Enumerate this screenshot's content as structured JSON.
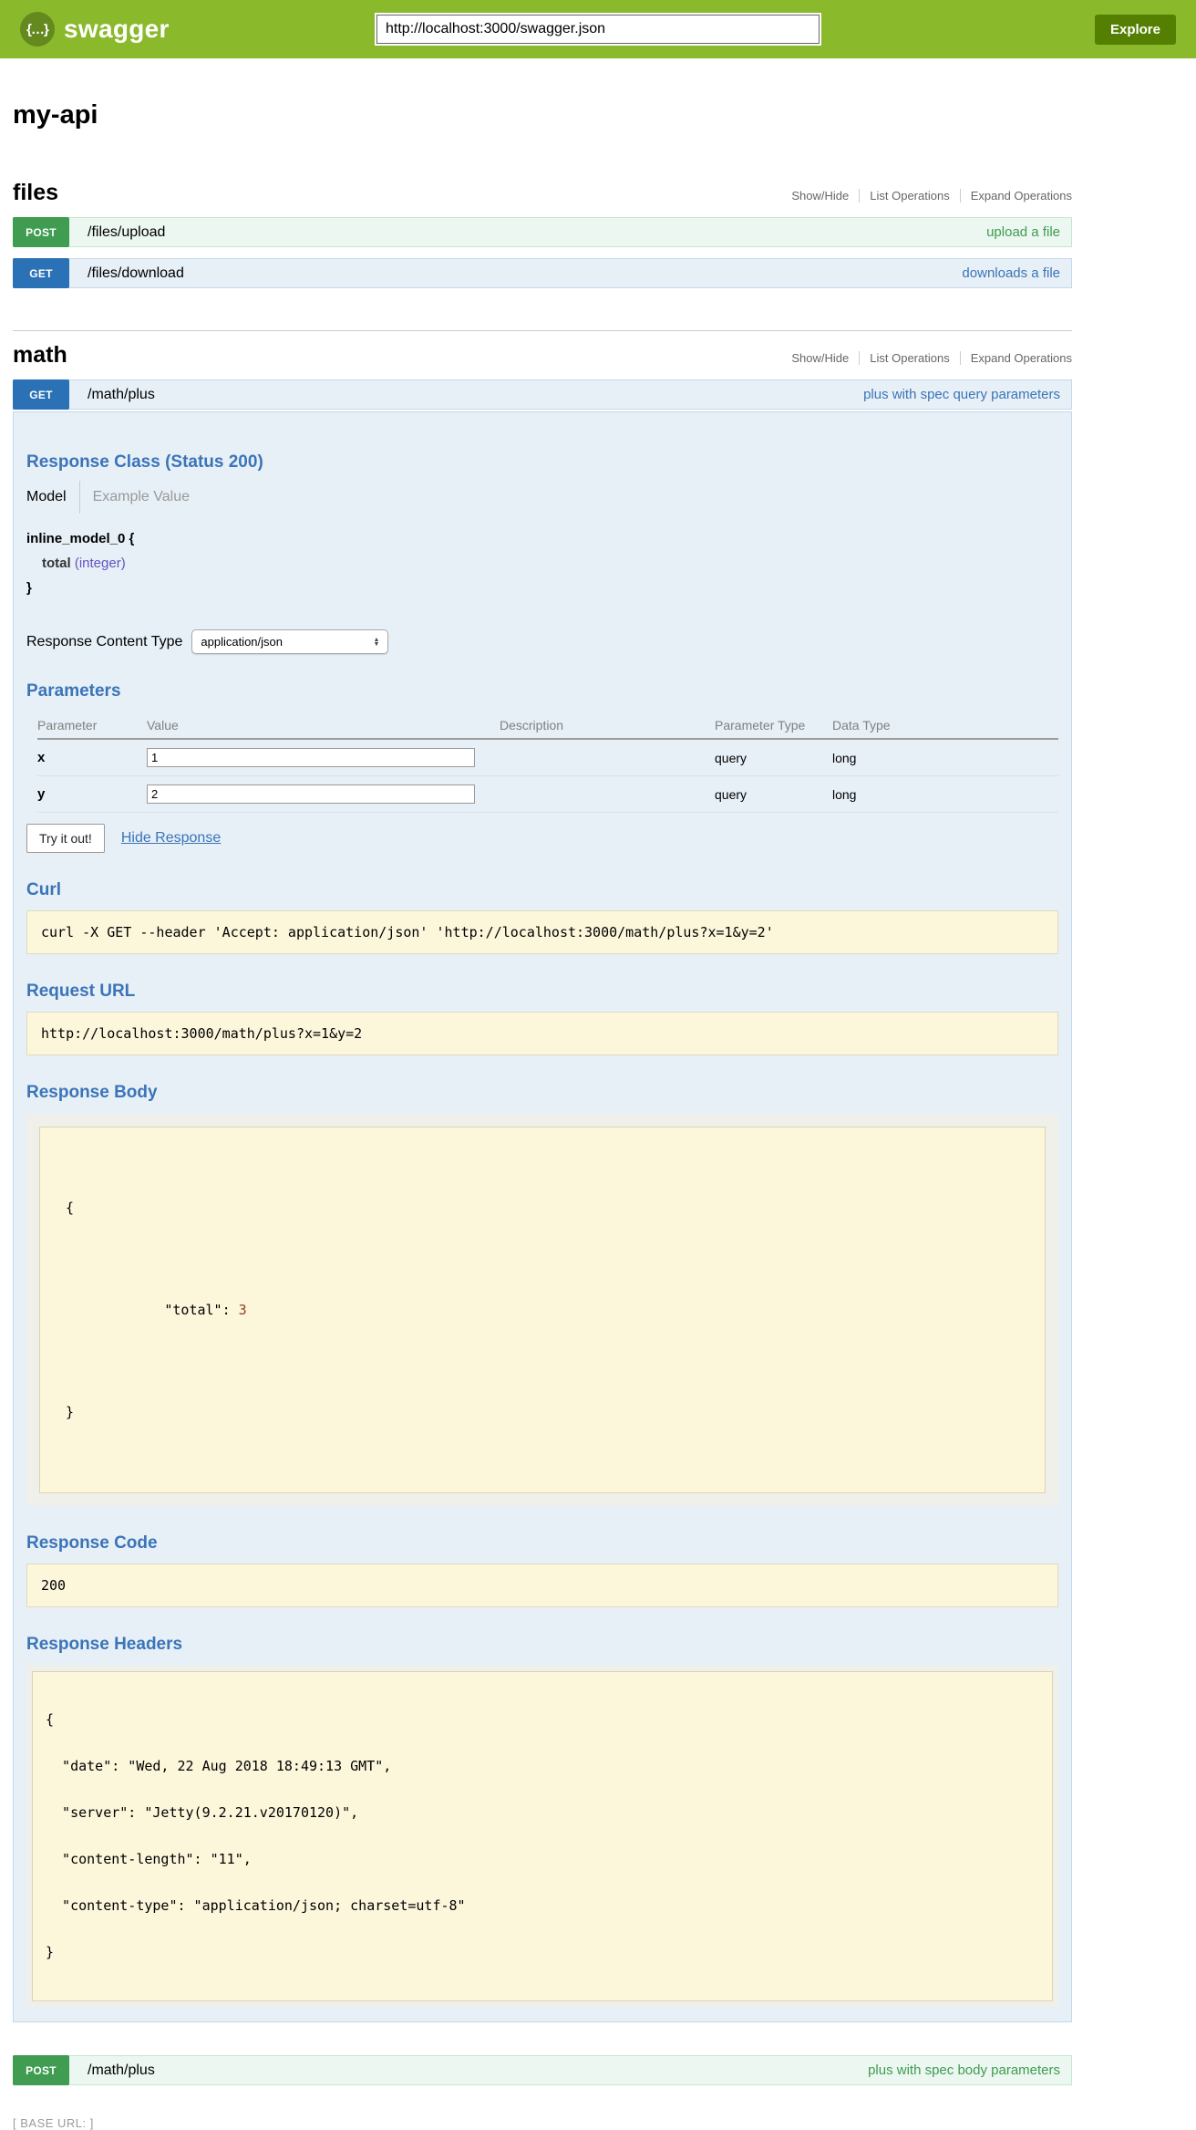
{
  "colors": {
    "header_green": "#8bb92c",
    "explore_button_green": "#547f00",
    "get_badge_blue": "#2a72b5",
    "get_row_bg": "#e7f0f7",
    "get_row_border": "#c3d9ec",
    "post_badge_green": "#3f9c51",
    "post_row_bg": "#ebf7f0",
    "post_row_border": "#c3e8d1",
    "heading_blue": "#3b74b8",
    "code_block_bg": "#fcf6db"
  },
  "header": {
    "logo_glyph": "{…}",
    "brand": "swagger",
    "url_value": "http://localhost:3000/swagger.json",
    "explore_label": "Explore"
  },
  "page": {
    "title": "my-api",
    "base_url": "[ BASE URL: ]"
  },
  "files_section": {
    "name": "files",
    "controls": {
      "show_hide": "Show/Hide",
      "list_operations": "List Operations",
      "expand_operations": "Expand Operations"
    },
    "upload_op": {
      "method": "POST",
      "path": "/files/upload",
      "summary": "upload a file"
    },
    "download_op": {
      "method": "GET",
      "path": "/files/download",
      "summary": "downloads a file"
    }
  },
  "math_section": {
    "name": "math",
    "controls": {
      "show_hide": "Show/Hide",
      "list_operations": "List Operations",
      "expand_operations": "Expand Operations"
    },
    "get_op": {
      "method": "GET",
      "path": "/math/plus",
      "summary": "plus with spec query parameters",
      "response_class": {
        "heading": "Response Class (Status 200)",
        "model_tab": "Model",
        "example_tab": "Example Value",
        "model_name": "inline_model_0 {",
        "prop_name": "total",
        "prop_type": "(integer)",
        "closing": "}"
      },
      "content_type": {
        "label": "Response Content Type",
        "selected": "application/json"
      },
      "parameters": {
        "heading": "Parameters",
        "columns": [
          "Parameter",
          "Value",
          "Description",
          "Parameter Type",
          "Data Type"
        ],
        "rows": [
          {
            "name": "x",
            "value": "1",
            "description": "",
            "parameter_type": "query",
            "data_type": "long"
          },
          {
            "name": "y",
            "value": "2",
            "description": "",
            "parameter_type": "query",
            "data_type": "long"
          }
        ]
      },
      "try_it_out": "Try it out!",
      "hide_response": "Hide Response",
      "curl": {
        "heading": "Curl",
        "command": "curl -X GET --header 'Accept: application/json' 'http://localhost:3000/math/plus?x=1&y=2'"
      },
      "request_url": {
        "heading": "Request URL",
        "value": "http://localhost:3000/math/plus?x=1&y=2"
      },
      "response_body": {
        "heading": "Response Body",
        "line_open": "{",
        "key": "  \"total\"",
        "separator": ": ",
        "number": "3",
        "line_close": "}"
      },
      "response_code": {
        "heading": "Response Code",
        "value": "200"
      },
      "response_headers": {
        "heading": "Response Headers",
        "lines": [
          "{",
          "  \"date\": \"Wed, 22 Aug 2018 18:49:13 GMT\",",
          "  \"server\": \"Jetty(9.2.21.v20170120)\",",
          "  \"content-length\": \"11\",",
          "  \"content-type\": \"application/json; charset=utf-8\"",
          "}"
        ]
      }
    },
    "post_op": {
      "method": "POST",
      "path": "/math/plus",
      "summary": "plus with spec body parameters"
    }
  }
}
